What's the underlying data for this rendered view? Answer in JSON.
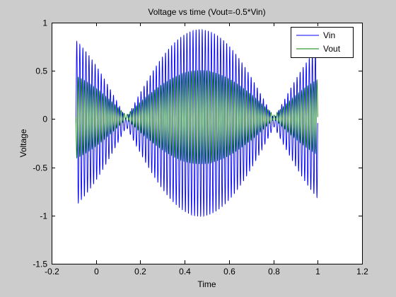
{
  "chart_data": {
    "type": "line",
    "title": "Voltage vs time (Vout=-0.5*Vin)",
    "xlabel": "Time",
    "ylabel": "Voltage",
    "xlim": [
      -0.2,
      1.2
    ],
    "ylim": [
      -1.5,
      1
    ],
    "xticks": [
      "-0.2",
      "0",
      "0.2",
      "0.4",
      "0.6",
      "0.8",
      "1",
      "1.2"
    ],
    "yticks": [
      "-1.5",
      "-1",
      "-0.5",
      "0",
      "0.5",
      "1"
    ],
    "grid": false,
    "legend_position": "top-right",
    "series": [
      {
        "name": "Vin",
        "color": "#0000ff",
        "signal": {
          "t_start": -0.09,
          "t_end": 1.0,
          "cycles": 79,
          "envelope": "abs(cos(2*pi*0.75*(t-0.47)))",
          "peak_at": 0.47,
          "max_amplitude": 0.97,
          "dc_offset": -0.04
        }
      },
      {
        "name": "Vout",
        "color": "#008000",
        "gain": -0.5
      }
    ]
  }
}
